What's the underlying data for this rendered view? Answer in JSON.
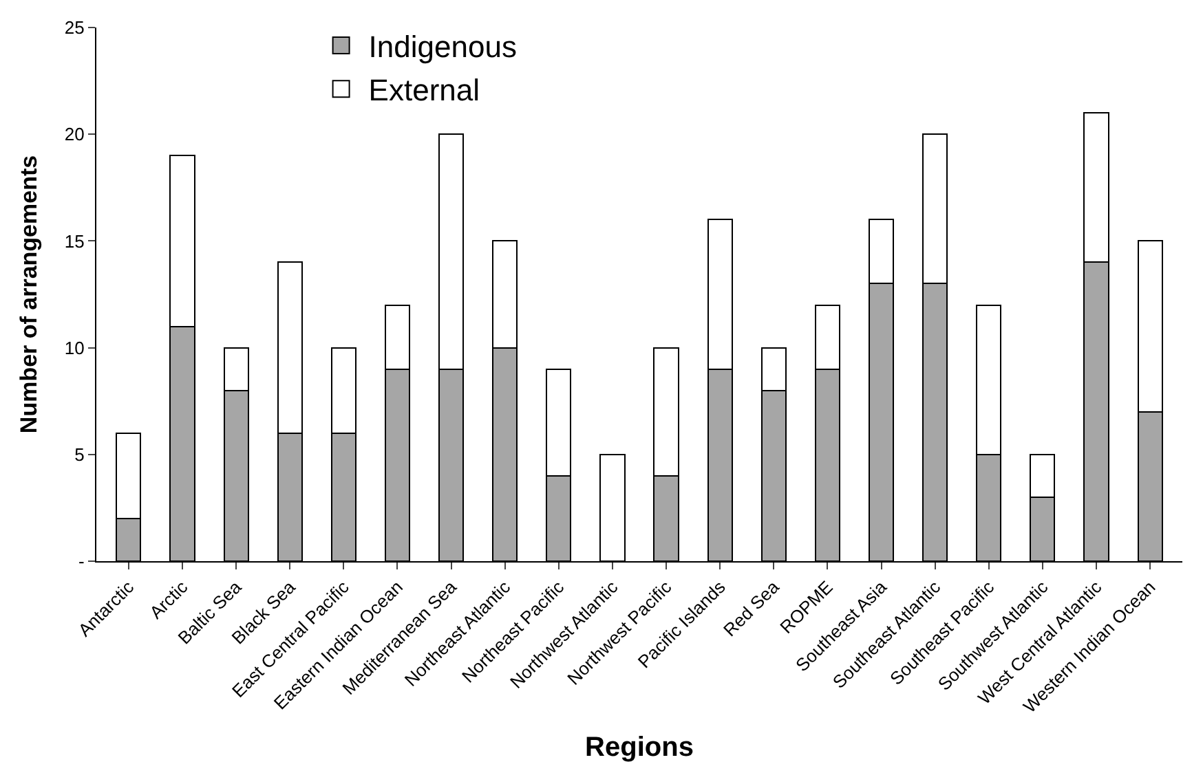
{
  "chart_data": {
    "type": "bar",
    "stacked": true,
    "xlabel": "Regions",
    "ylabel": "Number of arrangements",
    "categories": [
      "Antarctic",
      "Arctic",
      "Baltic Sea",
      "Black Sea",
      "East Central Pacific",
      "Eastern Indian Ocean",
      "Mediterranean Sea",
      "Northeast Atlantic",
      "Northeast Pacific",
      "Northwest Atlantic",
      "Northwest Pacific",
      "Pacific Islands",
      "Red Sea",
      "ROPME",
      "Southeast Asia",
      "Southeast Atlantic",
      "Southeast Pacific",
      "Southwest Atlantic",
      "West Central Atlantic",
      "Western Indian Ocean"
    ],
    "series": [
      {
        "name": "Indigenous",
        "color": "#a6a6a6",
        "values": [
          2,
          11,
          8,
          6,
          6,
          9,
          9,
          10,
          4,
          0,
          4,
          9,
          8,
          9,
          13,
          13,
          5,
          3,
          14,
          7
        ]
      },
      {
        "name": "External",
        "color": "#ffffff",
        "values": [
          4,
          8,
          2,
          8,
          4,
          3,
          11,
          5,
          5,
          5,
          6,
          7,
          2,
          3,
          3,
          7,
          7,
          2,
          7,
          8
        ]
      }
    ],
    "ylim": [
      0,
      25
    ],
    "yticks": [
      {
        "value": 0,
        "label": "-"
      },
      5,
      10,
      15,
      20,
      25
    ],
    "legend": "top left"
  }
}
